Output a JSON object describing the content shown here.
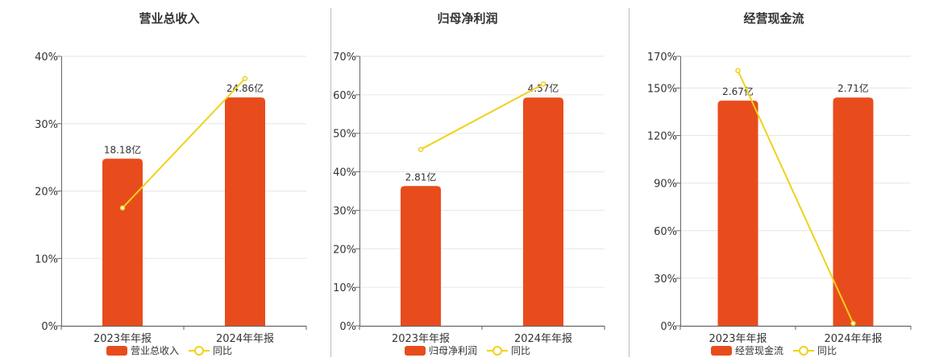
{
  "legend_line_label": "同比",
  "colors": {
    "bar": "#e84c1c",
    "line": "#f0d21a",
    "grid": "#e6e6e6",
    "axis": "#666666",
    "divider": "#bbbbbb",
    "text": "#333333"
  },
  "chart_data": [
    {
      "type": "bar",
      "title": "营业总收入",
      "categories": [
        "2023年年报",
        "2024年年报"
      ],
      "ylim": [
        0,
        40
      ],
      "yticks": [
        0,
        10,
        20,
        30,
        40
      ],
      "ytick_labels": [
        "0%",
        "10%",
        "20%",
        "30%",
        "40%"
      ],
      "series": [
        {
          "name": "营业总收入",
          "type": "bar",
          "values": [
            24.8,
            33.9
          ],
          "labels": [
            "18.18亿",
            "24.86亿"
          ]
        },
        {
          "name": "同比",
          "type": "line",
          "values": [
            17.5,
            36.7
          ]
        }
      ],
      "legend_position": "bottom-center",
      "grid": true
    },
    {
      "type": "bar",
      "title": "归母净利润",
      "categories": [
        "2023年年报",
        "2024年年报"
      ],
      "ylim": [
        0,
        70
      ],
      "yticks": [
        0,
        10,
        20,
        30,
        40,
        50,
        60,
        70
      ],
      "ytick_labels": [
        "0%",
        "10%",
        "20%",
        "30%",
        "40%",
        "50%",
        "60%",
        "70%"
      ],
      "series": [
        {
          "name": "归母净利润",
          "type": "bar",
          "values": [
            36.3,
            59.3
          ],
          "labels": [
            "2.81亿",
            "4.57亿"
          ]
        },
        {
          "name": "同比",
          "type": "line",
          "values": [
            45.8,
            62.8
          ]
        }
      ],
      "legend_position": "bottom-center",
      "grid": true
    },
    {
      "type": "bar",
      "title": "经营现金流",
      "categories": [
        "2023年年报",
        "2024年年报"
      ],
      "ylim": [
        0,
        170
      ],
      "yticks": [
        0,
        30,
        60,
        90,
        120,
        150,
        170
      ],
      "ytick_labels": [
        "0%",
        "30%",
        "60%",
        "90%",
        "120%",
        "150%",
        "170%"
      ],
      "series": [
        {
          "name": "经营现金流",
          "type": "bar",
          "values": [
            142,
            144
          ],
          "labels": [
            "2.67亿",
            "2.71亿"
          ]
        },
        {
          "name": "同比",
          "type": "line",
          "values": [
            161,
            1.5
          ]
        }
      ],
      "legend_position": "bottom-center",
      "grid": true
    }
  ]
}
